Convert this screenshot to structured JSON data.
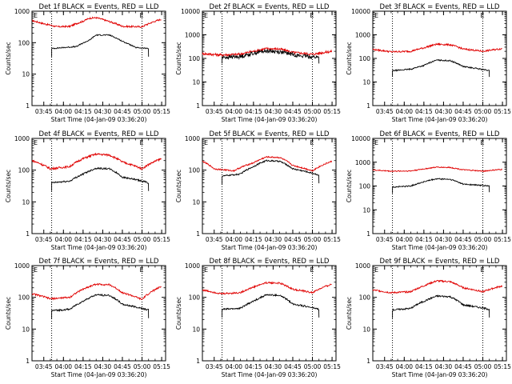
{
  "window": {
    "title": ""
  },
  "colors": {
    "events": "#000000",
    "lld": "#e00000",
    "frame": "#000000",
    "background": "#ffffff"
  },
  "shared": {
    "ylabel": "Counts/sec",
    "xlabel": "Start Time (04-Jan-09 03:36:20)",
    "x_tick_labels": [
      "03:45",
      "04:00",
      "04:15",
      "04:30",
      "04:45",
      "05:00",
      "05:15"
    ],
    "x_range_minutes_after_0336": [
      0,
      102
    ],
    "scale": "log"
  },
  "chart_data": [
    {
      "type": "line",
      "title": "Det 1f BLACK = Events, RED = LLD",
      "xlabel": "Start Time (04-Jan-09 03:36:20)",
      "ylabel": "Counts/sec",
      "ylim": [
        1,
        1000
      ],
      "yscale": "log",
      "y_tick_labels": [
        "1",
        "10",
        "100",
        "1000"
      ],
      "x_time_labels": [
        "03:45",
        "04:00",
        "04:15",
        "04:30",
        "04:45",
        "05:00",
        "05:15"
      ],
      "dotted_vlines": [
        "03:51",
        "05:00"
      ],
      "flag": "E",
      "series": [
        {
          "x": [
            "03:36",
            "03:45",
            "03:55",
            "04:05",
            "04:15",
            "04:20",
            "04:25",
            "04:35",
            "04:45",
            "05:00",
            "05:15"
          ],
          "values": [
            500,
            400,
            320,
            330,
            480,
            600,
            620,
            470,
            330,
            320,
            560
          ],
          "noise": 0.06,
          "color": "#e00000"
        },
        {
          "x": [
            "03:51",
            "04:00",
            "04:10",
            "04:20",
            "04:25",
            "04:35",
            "04:45",
            "04:55",
            "05:05"
          ],
          "values": [
            65,
            70,
            75,
            120,
            175,
            175,
            110,
            70,
            65
          ],
          "noise": 0.04,
          "color": "#000000"
        }
      ]
    },
    {
      "type": "line",
      "title": "Det 2f BLACK = Events, RED = LLD",
      "xlabel": "Start Time (04-Jan-09 03:36:20)",
      "ylabel": "Counts/sec",
      "ylim": [
        1,
        10000
      ],
      "yscale": "log",
      "y_tick_labels": [
        "1",
        "10",
        "100",
        "1000",
        "10000"
      ],
      "x_time_labels": [
        "03:45",
        "04:00",
        "04:15",
        "04:30",
        "04:45",
        "05:00",
        "05:15"
      ],
      "dotted_vlines": [
        "03:51",
        "05:00"
      ],
      "flag": "E",
      "series": [
        {
          "x": [
            "03:36",
            "03:50",
            "04:05",
            "04:15",
            "04:25",
            "04:35",
            "04:45",
            "05:00",
            "05:15"
          ],
          "values": [
            160,
            140,
            150,
            200,
            260,
            250,
            180,
            150,
            200
          ],
          "noise": 0.12,
          "color": "#e00000"
        },
        {
          "x": [
            "03:51",
            "04:05",
            "04:20",
            "04:25",
            "04:35",
            "04:50",
            "05:05"
          ],
          "values": [
            110,
            120,
            190,
            210,
            190,
            130,
            110
          ],
          "noise": 0.18,
          "color": "#000000"
        }
      ]
    },
    {
      "type": "line",
      "title": "Det 3f BLACK = Events, RED = LLD",
      "xlabel": "Start Time (04-Jan-09 03:36:20)",
      "ylabel": "Counts/sec",
      "ylim": [
        1,
        10000
      ],
      "yscale": "log",
      "y_tick_labels": [
        "1",
        "10",
        "100",
        "1000",
        "10000"
      ],
      "x_time_labels": [
        "03:45",
        "04:00",
        "04:15",
        "04:30",
        "04:45",
        "05:00",
        "05:15"
      ],
      "dotted_vlines": [
        "03:51",
        "05:00"
      ],
      "flag": "E",
      "series": [
        {
          "x": [
            "03:36",
            "03:50",
            "04:05",
            "04:15",
            "04:25",
            "04:35",
            "04:45",
            "05:00",
            "05:15"
          ],
          "values": [
            240,
            190,
            200,
            280,
            400,
            380,
            250,
            200,
            260
          ],
          "noise": 0.08,
          "color": "#e00000"
        },
        {
          "x": [
            "03:51",
            "04:05",
            "04:15",
            "04:25",
            "04:35",
            "04:45",
            "05:05"
          ],
          "values": [
            30,
            35,
            50,
            85,
            80,
            45,
            30
          ],
          "noise": 0.06,
          "color": "#000000"
        }
      ]
    },
    {
      "type": "line",
      "title": "Det 4f BLACK = Events, RED = LLD",
      "xlabel": "Start Time (04-Jan-09 03:36:20)",
      "ylabel": "Counts/sec",
      "ylim": [
        1,
        1000
      ],
      "yscale": "log",
      "y_tick_labels": [
        "1",
        "10",
        "100",
        "1000"
      ],
      "x_time_labels": [
        "03:45",
        "04:00",
        "04:15",
        "04:30",
        "04:45",
        "05:00",
        "05:15"
      ],
      "dotted_vlines": [
        "03:51",
        "05:00"
      ],
      "flag": "E",
      "series": [
        {
          "x": [
            "03:36",
            "03:50",
            "04:05",
            "04:15",
            "04:25",
            "04:35",
            "04:45",
            "05:00",
            "05:15"
          ],
          "values": [
            200,
            110,
            130,
            230,
            320,
            300,
            180,
            110,
            230
          ],
          "noise": 0.07,
          "color": "#e00000"
        },
        {
          "x": [
            "03:51",
            "04:05",
            "04:15",
            "04:25",
            "04:35",
            "04:45",
            "05:05"
          ],
          "values": [
            40,
            45,
            75,
            115,
            110,
            60,
            40
          ],
          "noise": 0.06,
          "color": "#000000"
        }
      ]
    },
    {
      "type": "line",
      "title": "Det 5f BLACK = Events, RED = LLD",
      "xlabel": "Start Time (04-Jan-09 03:36:20)",
      "ylabel": "Counts/sec",
      "ylim": [
        1,
        1000
      ],
      "yscale": "log",
      "y_tick_labels": [
        "1",
        "10",
        "100",
        "1000"
      ],
      "x_time_labels": [
        "03:45",
        "04:00",
        "04:15",
        "04:30",
        "04:45",
        "05:00",
        "05:15"
      ],
      "dotted_vlines": [
        "03:51",
        "05:00"
      ],
      "flag": "E",
      "series": [
        {
          "x": [
            "03:36",
            "03:45",
            "04:00",
            "04:15",
            "04:25",
            "04:35",
            "04:45",
            "05:00",
            "05:15"
          ],
          "values": [
            190,
            110,
            95,
            170,
            260,
            250,
            140,
            95,
            190
          ],
          "noise": 0.05,
          "color": "#e00000"
        },
        {
          "x": [
            "03:51",
            "04:05",
            "04:15",
            "04:25",
            "04:35",
            "04:45",
            "05:05"
          ],
          "values": [
            65,
            75,
            130,
            200,
            190,
            110,
            70
          ],
          "noise": 0.05,
          "color": "#000000"
        }
      ]
    },
    {
      "type": "line",
      "title": "Det 6f BLACK = Events, RED = LLD",
      "xlabel": "Start Time (04-Jan-09 03:36:20)",
      "ylabel": "Counts/sec",
      "ylim": [
        1,
        10000
      ],
      "yscale": "log",
      "y_tick_labels": [
        "1",
        "10",
        "100",
        "1000",
        "10000"
      ],
      "x_time_labels": [
        "03:45",
        "04:00",
        "04:15",
        "04:30",
        "04:45",
        "05:00",
        "05:15"
      ],
      "dotted_vlines": [
        "03:51",
        "05:00"
      ],
      "flag": "E",
      "series": [
        {
          "x": [
            "03:36",
            "03:50",
            "04:05",
            "04:15",
            "04:25",
            "04:35",
            "04:45",
            "05:00",
            "05:15"
          ],
          "values": [
            470,
            420,
            430,
            520,
            620,
            600,
            480,
            420,
            500
          ],
          "noise": 0.05,
          "color": "#e00000"
        },
        {
          "x": [
            "03:51",
            "04:05",
            "04:15",
            "04:25",
            "04:35",
            "04:45",
            "05:05"
          ],
          "values": [
            90,
            100,
            150,
            200,
            190,
            120,
            100
          ],
          "noise": 0.06,
          "color": "#000000"
        }
      ]
    },
    {
      "type": "line",
      "title": "Det 7f BLACK = Events, RED = LLD",
      "xlabel": "Start Time (04-Jan-09 03:36:20)",
      "ylabel": "Counts/sec",
      "ylim": [
        1,
        1000
      ],
      "yscale": "log",
      "y_tick_labels": [
        "1",
        "10",
        "100",
        "1000"
      ],
      "x_time_labels": [
        "03:45",
        "04:00",
        "04:15",
        "04:30",
        "04:45",
        "05:00",
        "05:15"
      ],
      "dotted_vlines": [
        "03:51",
        "05:00"
      ],
      "flag": "E",
      "series": [
        {
          "x": [
            "03:36",
            "03:50",
            "04:05",
            "04:15",
            "04:25",
            "04:35",
            "04:45",
            "05:00",
            "05:15"
          ],
          "values": [
            130,
            90,
            100,
            180,
            260,
            250,
            140,
            85,
            220
          ],
          "noise": 0.06,
          "color": "#e00000"
        },
        {
          "x": [
            "03:51",
            "04:05",
            "04:15",
            "04:25",
            "04:35",
            "04:45",
            "05:05"
          ],
          "values": [
            38,
            42,
            75,
            120,
            115,
            60,
            40
          ],
          "noise": 0.06,
          "color": "#000000"
        }
      ]
    },
    {
      "type": "line",
      "title": "Det 8f BLACK = Events, RED = LLD",
      "xlabel": "Start Time (04-Jan-09 03:36:20)",
      "ylabel": "Counts/sec",
      "ylim": [
        1,
        1000
      ],
      "yscale": "log",
      "y_tick_labels": [
        "1",
        "10",
        "100",
        "1000"
      ],
      "x_time_labels": [
        "03:45",
        "04:00",
        "04:15",
        "04:30",
        "04:45",
        "05:00",
        "05:15"
      ],
      "dotted_vlines": [
        "03:51",
        "05:00"
      ],
      "flag": "E",
      "series": [
        {
          "x": [
            "03:36",
            "03:50",
            "04:05",
            "04:15",
            "04:25",
            "04:35",
            "04:45",
            "05:00",
            "05:15"
          ],
          "values": [
            170,
            130,
            140,
            210,
            290,
            280,
            180,
            140,
            260
          ],
          "noise": 0.06,
          "color": "#e00000"
        },
        {
          "x": [
            "03:51",
            "04:05",
            "04:15",
            "04:25",
            "04:35",
            "04:45",
            "05:05"
          ],
          "values": [
            42,
            45,
            75,
            120,
            115,
            62,
            42
          ],
          "noise": 0.06,
          "color": "#000000"
        }
      ]
    },
    {
      "type": "line",
      "title": "Det 9f BLACK = Events, RED = LLD",
      "xlabel": "Start Time (04-Jan-09 03:36:20)",
      "ylabel": "Counts/sec",
      "ylim": [
        1,
        1000
      ],
      "yscale": "log",
      "y_tick_labels": [
        "1",
        "10",
        "100",
        "1000"
      ],
      "x_time_labels": [
        "03:45",
        "04:00",
        "04:15",
        "04:30",
        "04:45",
        "05:00",
        "05:15"
      ],
      "dotted_vlines": [
        "03:51",
        "05:00"
      ],
      "flag": "E",
      "series": [
        {
          "x": [
            "03:36",
            "03:50",
            "04:05",
            "04:15",
            "04:25",
            "04:35",
            "04:45",
            "05:00",
            "05:15"
          ],
          "values": [
            170,
            140,
            150,
            230,
            330,
            310,
            200,
            150,
            230
          ],
          "noise": 0.06,
          "color": "#e00000"
        },
        {
          "x": [
            "03:51",
            "04:05",
            "04:15",
            "04:25",
            "04:35",
            "04:45",
            "05:05"
          ],
          "values": [
            40,
            45,
            75,
            110,
            105,
            58,
            42
          ],
          "noise": 0.06,
          "color": "#000000"
        }
      ]
    }
  ]
}
